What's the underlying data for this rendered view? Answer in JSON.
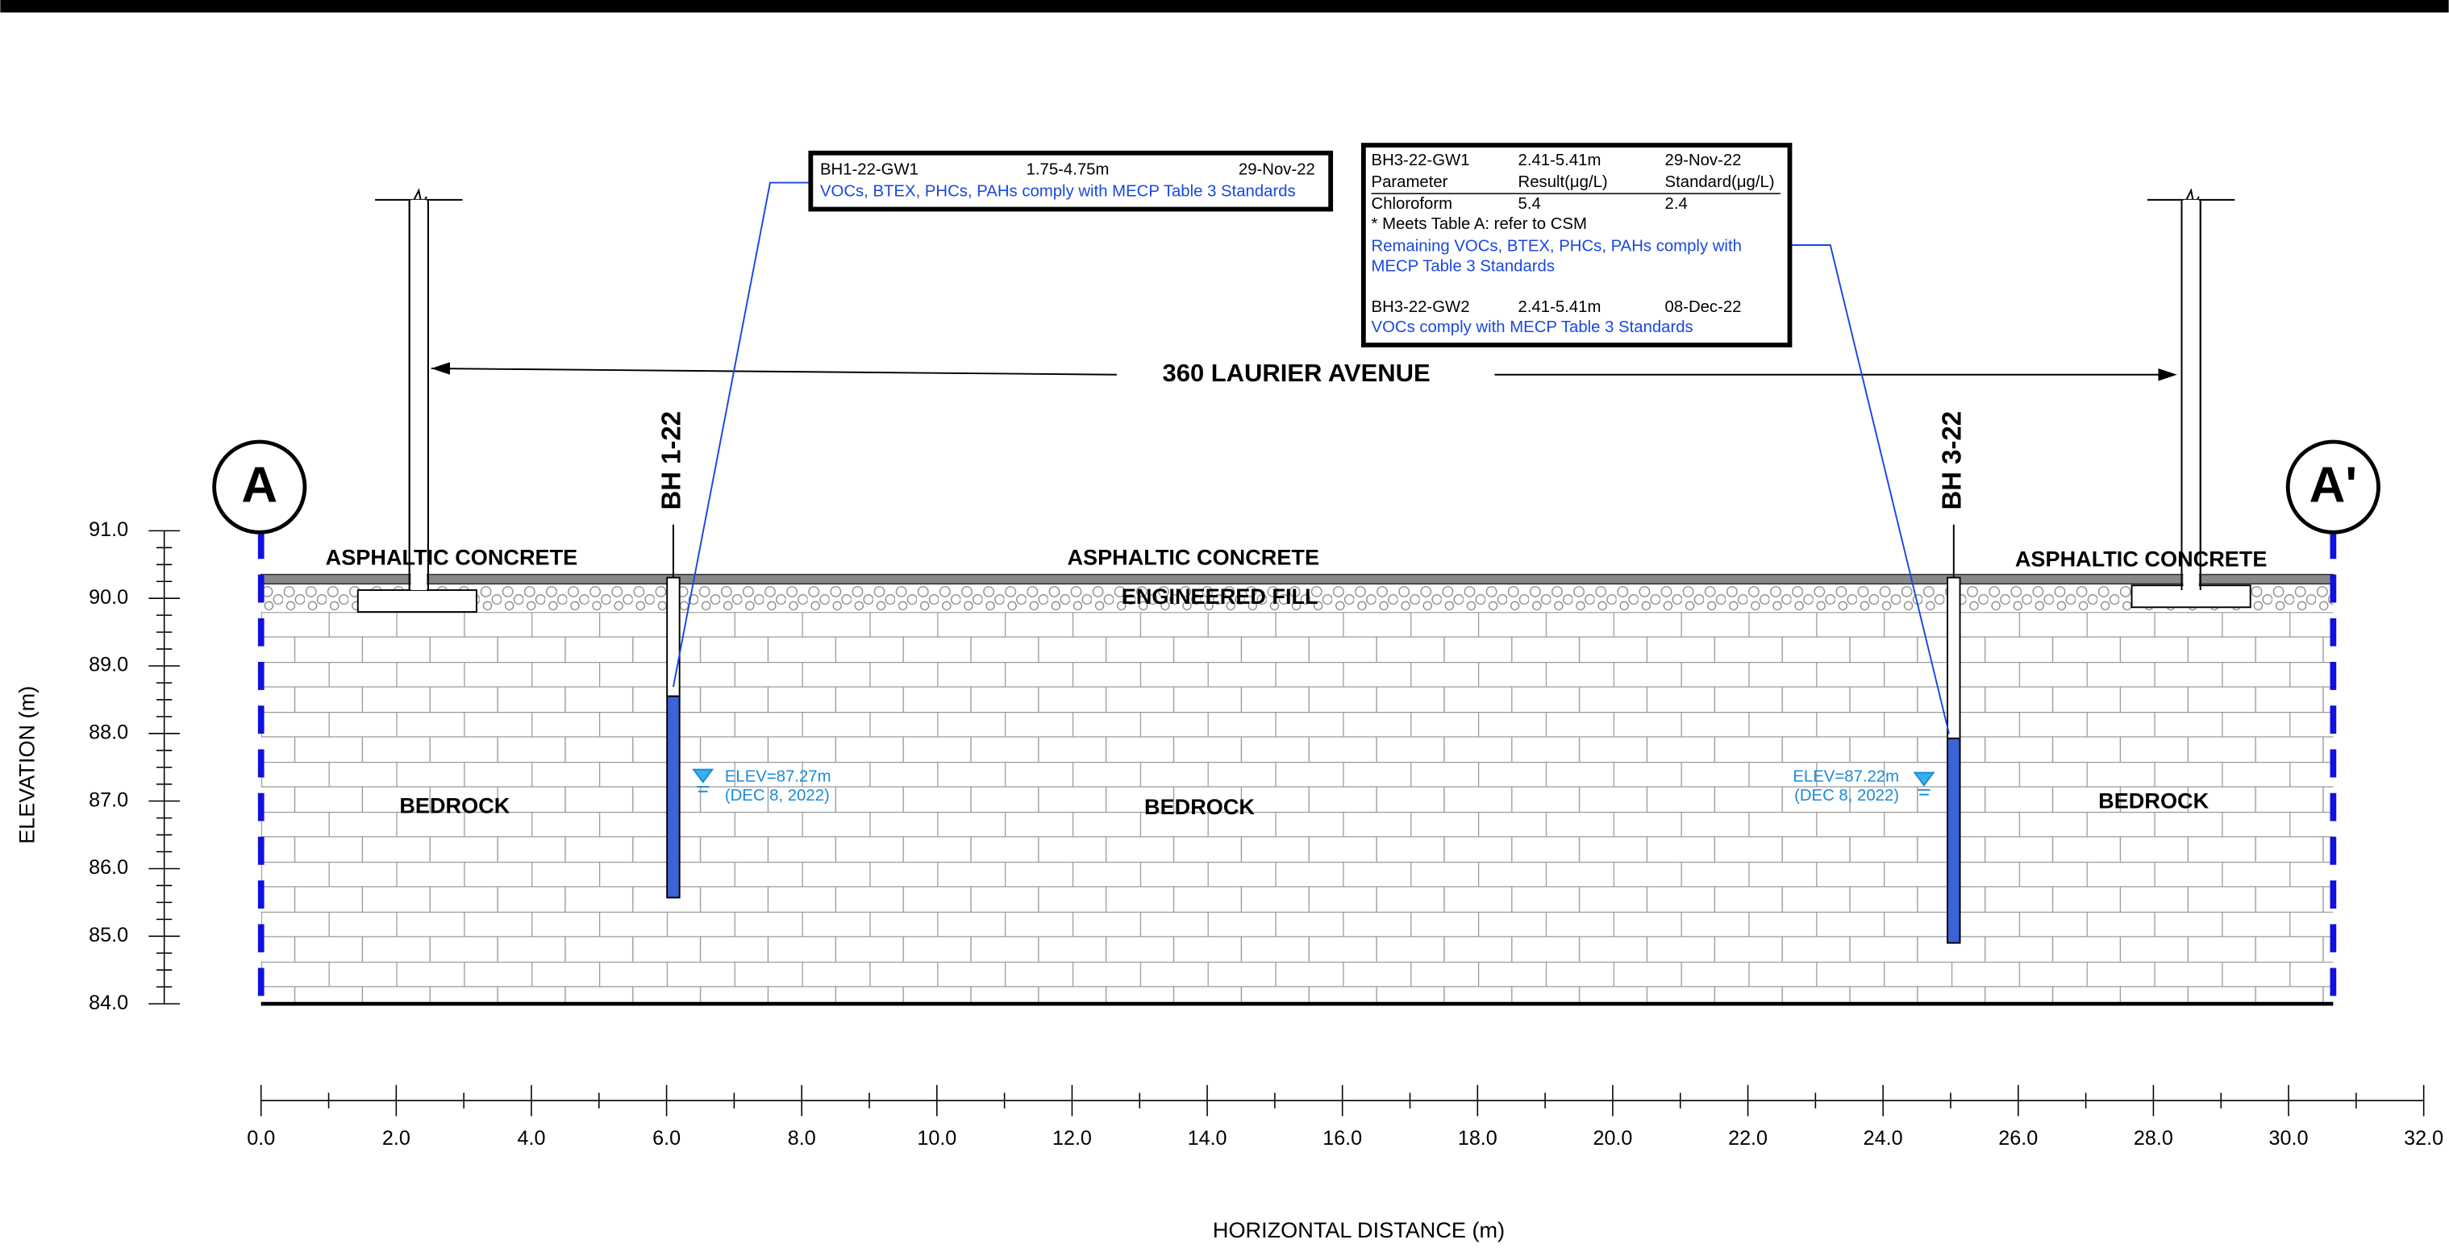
{
  "section": {
    "title": "360 LAURIER AVENUE",
    "markers": [
      "A",
      "A'"
    ],
    "asphalt_labels": [
      "ASPHALTIC CONCRETE",
      "ASPHALTIC CONCRETE",
      "ASPHALTIC CONCRETE"
    ],
    "fill_label": "ENGINEERED FILL",
    "bedrock_labels": [
      "BEDROCK",
      "BEDROCK",
      "BEDROCK"
    ]
  },
  "boreholes": [
    {
      "name": "BH 1-22",
      "water_level": "ELEV=87.27m",
      "date": "(DEC 8, 2022)"
    },
    {
      "name": "BH 3-22",
      "water_level": "ELEV=87.22m",
      "date": "(DEC 8, 2022)"
    }
  ],
  "sample_boxes": [
    {
      "rows": [
        [
          "BH1-22-GW1",
          "1.75-4.75m",
          "29-Nov-22"
        ]
      ],
      "notes": [
        "VOCs, BTEX, PHCs, PAHs comply with MECP Table 3 Standards"
      ]
    },
    {
      "rows": [
        [
          "BH3-22-GW1",
          "2.41-5.41m",
          "29-Nov-22"
        ],
        [
          "Parameter",
          "Result(μg/L)",
          "Standard(μg/L)"
        ],
        [
          "Chloroform",
          "5.4",
          "2.4"
        ]
      ],
      "footnote": "* Meets Table A: refer to CSM",
      "notes": [
        "Remaining VOCs, BTEX, PHCs, PAHs comply with",
        "MECP Table 3 Standards"
      ],
      "rows2": [
        [
          "BH3-22-GW2",
          "2.41-5.41m",
          "08-Dec-22"
        ]
      ],
      "notes2": [
        "VOCs comply with MECP Table 3 Standards"
      ]
    }
  ],
  "y_axis": {
    "label": "ELEVATION (m)",
    "ticks": [
      "91.0",
      "90.0",
      "89.0",
      "88.0",
      "87.0",
      "86.0",
      "85.0",
      "84.0"
    ]
  },
  "x_axis": {
    "label": "HORIZONTAL DISTANCE (m)",
    "ticks": [
      "0.0",
      "2.0",
      "4.0",
      "6.0",
      "8.0",
      "10.0",
      "12.0",
      "14.0",
      "16.0",
      "18.0",
      "20.0",
      "22.0",
      "24.0",
      "26.0",
      "28.0",
      "30.0",
      "32.0"
    ]
  }
}
